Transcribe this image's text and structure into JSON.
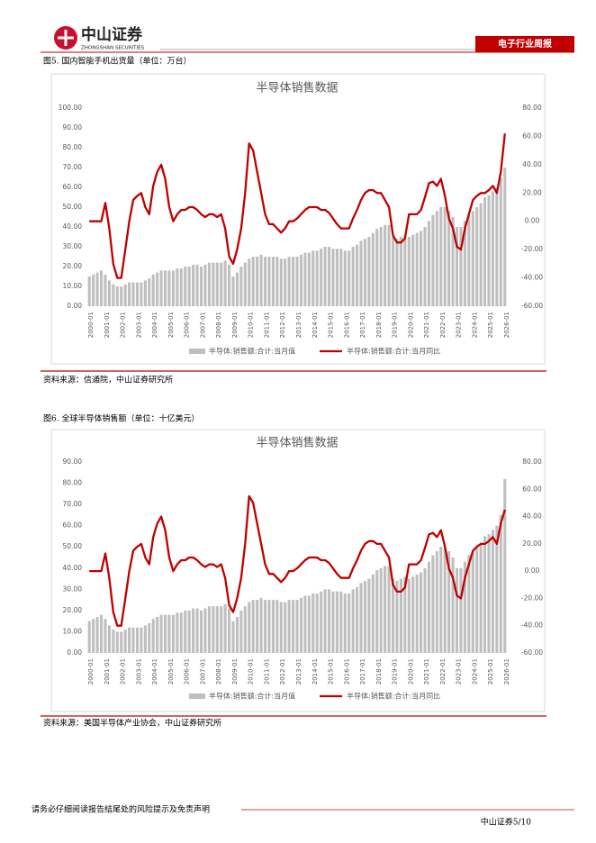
{
  "document": {
    "logo_cn": "中山证券",
    "logo_en": "ZHONGSHAN SECURITIES",
    "report_type": "电子行业周报",
    "captions": [
      "图5. 国内智能手机出货量（单位：万台）",
      "图6. 全球半导体销售额（单位：十亿美元）"
    ],
    "sources": [
      "资料来源：信通院，中山证券研究所",
      "资料来源：美国半导体产业协会，中山证券研究所"
    ],
    "disclaimer": "请务必仔细阅读报告结尾处的风险提示及免责声明",
    "page": "中山证券5/10"
  },
  "chart_data": [
    {
      "type": "bar-line",
      "title": "半导体销售数据",
      "categories": [
        "2000-01",
        null,
        null,
        null,
        "2001-01",
        null,
        null,
        null,
        "2002-01",
        null,
        null,
        null,
        "2003-01",
        null,
        null,
        null,
        "2004-01",
        null,
        null,
        null,
        "2005-01",
        null,
        null,
        null,
        "2006-01",
        null,
        null,
        null,
        "2007-01",
        null,
        null,
        null,
        "2008-01",
        null,
        null,
        null,
        "2009-01",
        null,
        null,
        null,
        "2010-01",
        null,
        null,
        null,
        "2011-01",
        null,
        null,
        null,
        "2012-01",
        null,
        null,
        null,
        "2013-01",
        null,
        null,
        null,
        "2014-01",
        null,
        null,
        null,
        "2015-01",
        null,
        null,
        null,
        "2016-01",
        null,
        null,
        null,
        "2017-01",
        null,
        null,
        null,
        "2018-01",
        null,
        null,
        null,
        "2019-01",
        null,
        null,
        null,
        "2020-01",
        null,
        null,
        null,
        "2021-01",
        null,
        null,
        null,
        "2022-01",
        null,
        null,
        null,
        "2023-01",
        null,
        null,
        null,
        "2024-01",
        null,
        null,
        null,
        "2025-01",
        null,
        null,
        null,
        "2026-01"
      ],
      "series": [
        {
          "name": "半导体:销售额:合计:当月值",
          "color": "#bfbfbf",
          "values": [
            15,
            16,
            17,
            18,
            16,
            13,
            11,
            10,
            10,
            11,
            12,
            12,
            12,
            12,
            13,
            14,
            16,
            17,
            18,
            18,
            18,
            18,
            19,
            19,
            20,
            20,
            21,
            21,
            20,
            21,
            22,
            22,
            22,
            22,
            23,
            21,
            15,
            17,
            20,
            22,
            24,
            25,
            25,
            26,
            25,
            25,
            25,
            25,
            24,
            24,
            25,
            25,
            25,
            26,
            27,
            27,
            28,
            28,
            29,
            30,
            30,
            29,
            29,
            29,
            28,
            28,
            30,
            31,
            33,
            34,
            35,
            37,
            39,
            40,
            41,
            41,
            35,
            34,
            35,
            36,
            35,
            36,
            37,
            38,
            40,
            43,
            46,
            48,
            50,
            50,
            48,
            45,
            40,
            40,
            43,
            46,
            48,
            50,
            52,
            55,
            56,
            58,
            60,
            65,
            70
          ]
        },
        {
          "name": "半导体:销售额:合计:当月同比",
          "color": "#c00000",
          "axis": "y2",
          "values": [
            0,
            0,
            0,
            0,
            13,
            -5,
            -30,
            -40,
            -40,
            -20,
            0,
            15,
            18,
            20,
            10,
            5,
            25,
            35,
            40,
            30,
            10,
            0,
            5,
            8,
            8,
            10,
            10,
            8,
            5,
            3,
            5,
            5,
            3,
            5,
            -5,
            -25,
            -30,
            -20,
            -5,
            20,
            55,
            50,
            35,
            20,
            5,
            -2,
            -2,
            -5,
            -8,
            -5,
            0,
            0,
            2,
            5,
            8,
            10,
            10,
            10,
            8,
            8,
            6,
            2,
            -2,
            -5,
            -5,
            -5,
            2,
            8,
            15,
            20,
            22,
            22,
            20,
            20,
            15,
            10,
            -10,
            -15,
            -15,
            -12,
            5,
            5,
            5,
            8,
            17,
            27,
            28,
            25,
            30,
            18,
            2,
            -5,
            -18,
            -20,
            -5,
            5,
            15,
            18,
            20,
            20,
            22,
            25,
            20,
            35,
            62
          ]
        }
      ],
      "ylim": [
        0,
        100
      ],
      "yticks": [
        {
          "value": 0,
          "label": "0.00"
        },
        {
          "value": 10,
          "label": "10.00"
        },
        {
          "value": 20,
          "label": "20.00"
        },
        {
          "value": 30,
          "label": "30.00"
        },
        {
          "value": 40,
          "label": "40.00"
        },
        {
          "value": 50,
          "label": "50.00"
        },
        {
          "value": 60,
          "label": "60.00"
        },
        {
          "value": 70,
          "label": "70.00"
        },
        {
          "value": 80,
          "label": "80.00"
        },
        {
          "value": 90,
          "label": "90.00"
        },
        {
          "value": 100,
          "label": "100.00"
        }
      ],
      "y2lim": [
        -60,
        80
      ],
      "y2ticks": [
        {
          "value": -60,
          "label": "-60.00"
        },
        {
          "value": -40,
          "label": "-40.00"
        },
        {
          "value": -20,
          "label": "-20.00"
        },
        {
          "value": 0,
          "label": "0.00"
        },
        {
          "value": 20,
          "label": "20.00"
        },
        {
          "value": 40,
          "label": "40.00"
        },
        {
          "value": 60,
          "label": "60.00"
        },
        {
          "value": 80,
          "label": "80.00"
        }
      ],
      "legend": "bottom"
    },
    {
      "type": "bar-line",
      "title": "半导体销售数据",
      "categories": [
        "2000-01",
        null,
        null,
        null,
        "2001-01",
        null,
        null,
        null,
        "2002-01",
        null,
        null,
        null,
        "2003-01",
        null,
        null,
        null,
        "2004-01",
        null,
        null,
        null,
        "2005-01",
        null,
        null,
        null,
        "2006-01",
        null,
        null,
        null,
        "2007-01",
        null,
        null,
        null,
        "2008-01",
        null,
        null,
        null,
        "2009-01",
        null,
        null,
        null,
        "2010-01",
        null,
        null,
        null,
        "2011-01",
        null,
        null,
        null,
        "2012-01",
        null,
        null,
        null,
        "2013-01",
        null,
        null,
        null,
        "2014-01",
        null,
        null,
        null,
        "2015-01",
        null,
        null,
        null,
        "2016-01",
        null,
        null,
        null,
        "2017-01",
        null,
        null,
        null,
        "2018-01",
        null,
        null,
        null,
        "2019-01",
        null,
        null,
        null,
        "2020-01",
        null,
        null,
        null,
        "2021-01",
        null,
        null,
        null,
        "2022-01",
        null,
        null,
        null,
        "2023-01",
        null,
        null,
        null,
        "2024-01",
        null,
        null,
        null,
        "2025-01",
        null,
        null,
        null,
        "2026-01"
      ],
      "series": [
        {
          "name": "半导体:销售额:合计:当月值",
          "color": "#bfbfbf",
          "values": [
            15,
            16,
            17,
            18,
            16,
            13,
            11,
            10,
            10,
            11,
            12,
            12,
            12,
            12,
            13,
            14,
            16,
            17,
            18,
            18,
            18,
            18,
            19,
            19,
            20,
            20,
            21,
            21,
            20,
            21,
            22,
            22,
            22,
            22,
            23,
            21,
            15,
            17,
            20,
            22,
            24,
            25,
            25,
            26,
            25,
            25,
            25,
            25,
            24,
            24,
            25,
            25,
            25,
            26,
            27,
            27,
            28,
            28,
            29,
            30,
            30,
            29,
            29,
            29,
            28,
            28,
            30,
            31,
            33,
            34,
            35,
            37,
            39,
            40,
            41,
            41,
            35,
            34,
            35,
            36,
            35,
            36,
            37,
            38,
            40,
            43,
            46,
            48,
            50,
            50,
            48,
            45,
            40,
            40,
            43,
            46,
            48,
            50,
            52,
            55,
            56,
            58,
            60,
            65,
            82
          ]
        },
        {
          "name": "半导体:销售额:合计:当月同比",
          "color": "#c00000",
          "axis": "y2",
          "values": [
            0,
            0,
            0,
            0,
            13,
            -5,
            -30,
            -40,
            -40,
            -20,
            0,
            15,
            18,
            20,
            10,
            5,
            25,
            35,
            40,
            30,
            10,
            0,
            5,
            8,
            8,
            10,
            10,
            8,
            5,
            3,
            5,
            5,
            3,
            5,
            -5,
            -25,
            -30,
            -20,
            -5,
            20,
            55,
            50,
            35,
            20,
            5,
            -2,
            -2,
            -5,
            -8,
            -5,
            0,
            0,
            2,
            5,
            8,
            10,
            10,
            10,
            8,
            8,
            6,
            2,
            -2,
            -5,
            -5,
            -5,
            2,
            8,
            15,
            20,
            22,
            22,
            20,
            20,
            15,
            10,
            -10,
            -15,
            -15,
            -12,
            5,
            5,
            5,
            8,
            17,
            27,
            28,
            25,
            30,
            18,
            2,
            -5,
            -18,
            -20,
            -5,
            5,
            15,
            18,
            20,
            20,
            22,
            25,
            20,
            35,
            45
          ]
        }
      ],
      "ylim": [
        0,
        90
      ],
      "yticks": [
        {
          "value": 0,
          "label": "0.00"
        },
        {
          "value": 10,
          "label": "10.00"
        },
        {
          "value": 20,
          "label": "20.00"
        },
        {
          "value": 30,
          "label": "30.00"
        },
        {
          "value": 40,
          "label": "40.00"
        },
        {
          "value": 50,
          "label": "50.00"
        },
        {
          "value": 60,
          "label": "60.00"
        },
        {
          "value": 70,
          "label": "70.00"
        },
        {
          "value": 80,
          "label": "80.00"
        },
        {
          "value": 90,
          "label": "90.00"
        }
      ],
      "y2lim": [
        -60,
        80
      ],
      "y2ticks": [
        {
          "value": -60,
          "label": "-60.00"
        },
        {
          "value": -40,
          "label": "-40.00"
        },
        {
          "value": -20,
          "label": "-20.00"
        },
        {
          "value": 0,
          "label": "0.00"
        },
        {
          "value": 20,
          "label": "20.00"
        },
        {
          "value": 40,
          "label": "40.00"
        },
        {
          "value": 60,
          "label": "60.00"
        },
        {
          "value": 80,
          "label": "80.00"
        }
      ],
      "legend": "bottom"
    }
  ]
}
